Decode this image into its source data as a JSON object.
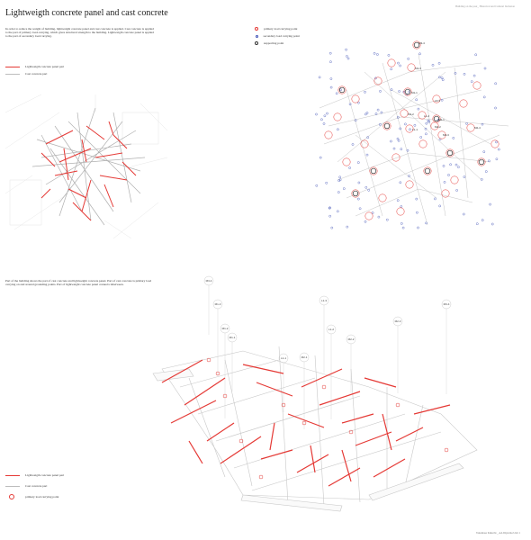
{
  "header": {
    "title": "Lightweigth concrete panel and cast concrete",
    "right_note": "Building on the past_ Historical and Cultural Inclusion"
  },
  "top_left": {
    "description": "In order to reduce the weight of building, lightweight concrete panel and cast concrete is applied. Cast concrete is applied to the part of primary load-carrying, which gives structural strength to the building. Lightweigth concrete panel is applied to the part of secondary load carrying.",
    "legend": [
      {
        "label": "Lightweigth concrete panel part",
        "color": "#e53935",
        "icon": "red-line"
      },
      {
        "label": "Cast concrete part",
        "color": "#bdbdbd",
        "icon": "gray-line"
      }
    ]
  },
  "top_right": {
    "legend": [
      {
        "label": "primary load carrying point",
        "color": "#e53935",
        "icon": "red-circle"
      },
      {
        "label": "secondary load carrying point",
        "color": "#3f51b5",
        "icon": "blue-dot"
      },
      {
        "label": "supporting point",
        "color": "#333333",
        "icon": "black-circle"
      }
    ],
    "point_labels": [
      "M3-4",
      "M1-3",
      "M1-1",
      "L1-3",
      "M1-2",
      "L1-1",
      "M2-1",
      "M2-2",
      "L1-2",
      "M2-3",
      "M2-4"
    ]
  },
  "bottom": {
    "description": "Part of the building shows the part of cast concrete and lightweight concrete panel. Part of cast concrete is primary load carrying on and around grounding points. Part of lightweight concrete panel connects inbetween.",
    "legend": [
      {
        "label": "Lightweigth concrete panel part",
        "color": "#e53935",
        "icon": "red-line"
      },
      {
        "label": "Cast concrete part",
        "color": "#bdbdbd",
        "icon": "gray-line"
      },
      {
        "label": "primary load carrying point",
        "color": "#e53935",
        "icon": "red-circle"
      }
    ],
    "tags": [
      "M3-4",
      "M1-3",
      "M1-2",
      "M1-1",
      "L1-3",
      "L1-2",
      "M2-2",
      "M2-3",
      "M3-4",
      "L1-1",
      "M2-1"
    ]
  },
  "footer": {
    "credit": "Takamasa Kikuchi _ AA Diploma Unit 1"
  }
}
